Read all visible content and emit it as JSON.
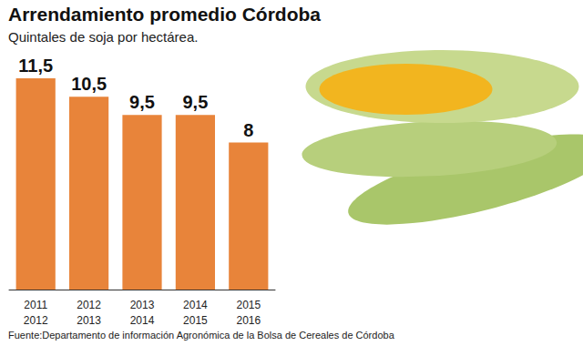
{
  "chart_data": {
    "type": "bar",
    "title": "Arrendamiento promedio Córdoba",
    "subtitle": "Quintales de soja por hectárea.",
    "source": "Fuente:Departamento de información Agronómica de la Bolsa de Cereales de Córdoba",
    "categories": [
      "2011\n2012",
      "2012\n2013",
      "2013\n2014",
      "2014\n2015",
      "2015\n2016"
    ],
    "values": [
      11.5,
      10.5,
      9.5,
      9.5,
      8
    ],
    "value_labels": [
      "11,5",
      "10,5",
      "9,5",
      "9,5",
      "8"
    ],
    "color": "#e8843a",
    "ylim": [
      0,
      11.5
    ],
    "grid": false,
    "data_labels": true,
    "tick_labels": "x"
  }
}
